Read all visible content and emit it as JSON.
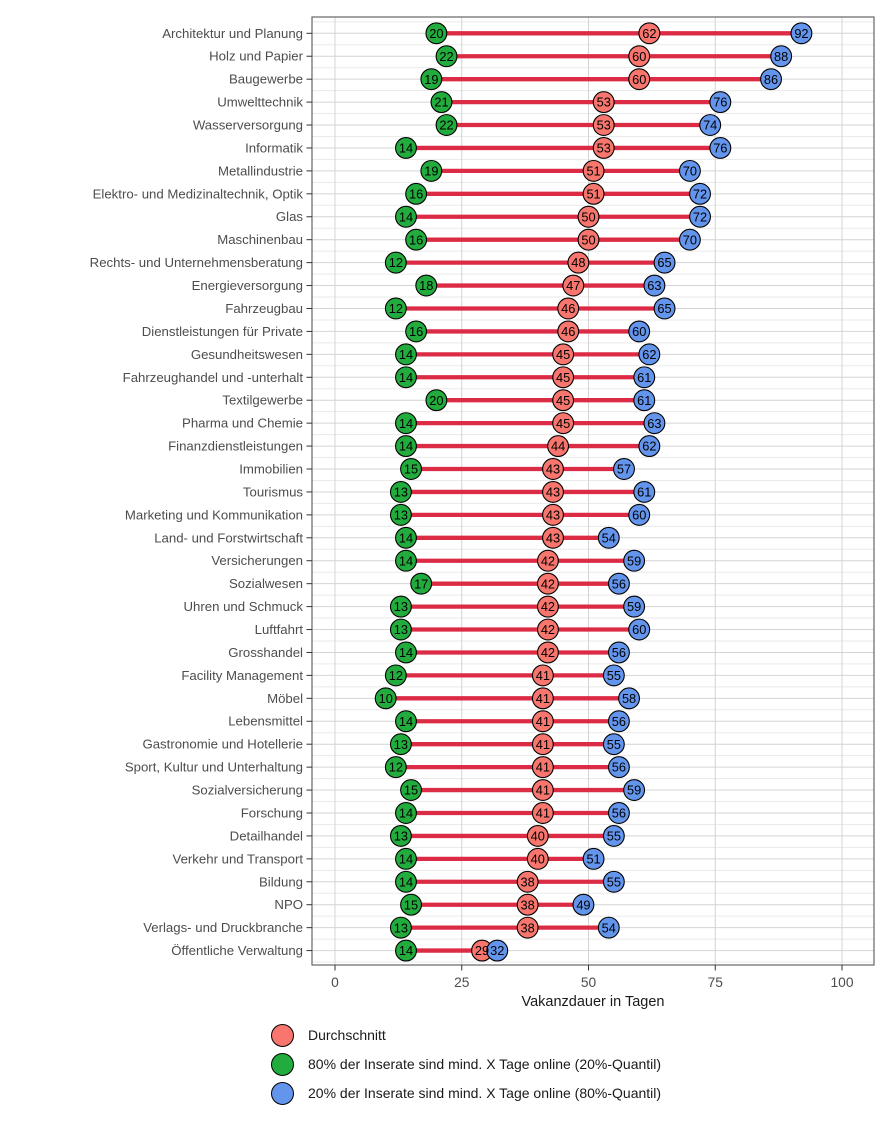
{
  "chart_data": {
    "type": "dumbbell",
    "title": "",
    "xlabel": "Vakanzdauer in Tagen",
    "ylabel": "",
    "xlim": [
      0,
      100
    ],
    "xticks": [
      0,
      25,
      50,
      75,
      100
    ],
    "grid": true,
    "legend_position": "bottom-left",
    "categories": [
      "Architektur und Planung",
      "Holz und Papier",
      "Baugewerbe",
      "Umwelttechnik",
      "Wasserversorgung",
      "Informatik",
      "Metallindustrie",
      "Elektro- und Medizinaltechnik, Optik",
      "Glas",
      "Maschinenbau",
      "Rechts- und Unternehmensberatung",
      "Energieversorgung",
      "Fahrzeugbau",
      "Dienstleistungen für Private",
      "Gesundheitswesen",
      "Fahrzeughandel und -unterhalt",
      "Textilgewerbe",
      "Pharma und Chemie",
      "Finanzdienstleistungen",
      "Immobilien",
      "Tourismus",
      "Marketing und Kommunikation",
      "Land- und Forstwirtschaft",
      "Versicherungen",
      "Sozialwesen",
      "Uhren und Schmuck",
      "Luftfahrt",
      "Grosshandel",
      "Facility Management",
      "Möbel",
      "Lebensmittel",
      "Gastronomie und Hotellerie",
      "Sport, Kultur und Unterhaltung",
      "Sozialversicherung",
      "Forschung",
      "Detailhandel",
      "Verkehr und Transport",
      "Bildung",
      "NPO",
      "Verlags- und Druckbranche",
      "Öffentliche Verwaltung"
    ],
    "series": [
      {
        "name": "80% der Inserate sind mind. X Tage online (20%-Quantil)",
        "color": "#22AC3D",
        "values": [
          20,
          22,
          19,
          21,
          22,
          14,
          19,
          16,
          14,
          16,
          12,
          18,
          12,
          16,
          14,
          14,
          20,
          14,
          14,
          15,
          13,
          13,
          14,
          14,
          17,
          13,
          13,
          14,
          12,
          10,
          14,
          13,
          12,
          15,
          14,
          13,
          14,
          14,
          15,
          13,
          14
        ]
      },
      {
        "name": "Durchschnitt",
        "color": "#F8766D",
        "values": [
          62,
          60,
          60,
          53,
          53,
          53,
          51,
          51,
          50,
          50,
          48,
          47,
          46,
          46,
          45,
          45,
          45,
          45,
          44,
          43,
          43,
          43,
          43,
          42,
          42,
          42,
          42,
          42,
          41,
          41,
          41,
          41,
          41,
          41,
          41,
          40,
          40,
          38,
          38,
          38,
          29
        ]
      },
      {
        "name": "20% der Inserate sind mind. X Tage online (80%-Quantil)",
        "color": "#6495ED",
        "values": [
          92,
          88,
          86,
          76,
          74,
          76,
          70,
          72,
          72,
          70,
          65,
          63,
          65,
          60,
          62,
          61,
          61,
          63,
          62,
          57,
          61,
          60,
          54,
          59,
          56,
          59,
          60,
          56,
          55,
          58,
          56,
          55,
          56,
          59,
          56,
          55,
          51,
          55,
          49,
          54,
          32
        ]
      }
    ],
    "legend": [
      {
        "label": "Durchschnitt",
        "color": "#F8766D"
      },
      {
        "label": "80% der Inserate sind mind. X Tage online (20%-Quantil)",
        "color": "#22AC3D"
      },
      {
        "label": "20% der Inserate sind mind. X Tage online (80%-Quantil)",
        "color": "#6495ED"
      }
    ],
    "colors": {
      "connector_line": "#DC2B45",
      "grid_major": "#D4D4D4",
      "grid_minor": "#EAEAEA",
      "panel_border": "#666666",
      "tick": "#333333",
      "axis_text": "#4D4D4D",
      "point_outline": "#000000",
      "point_label": "#000000",
      "background": "#FFFFFF"
    }
  }
}
